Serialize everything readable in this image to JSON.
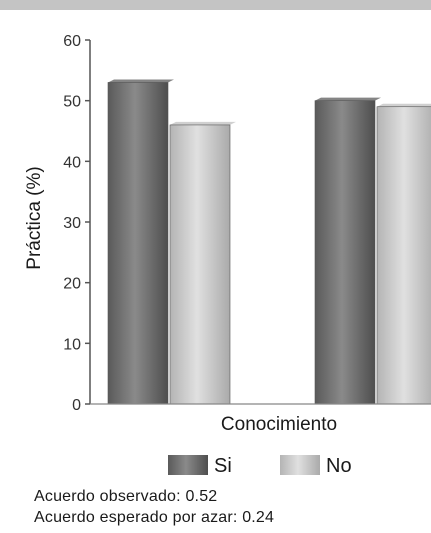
{
  "chart_data": {
    "type": "bar",
    "xlabel": "Conocimiento",
    "ylabel": "Práctica (%)",
    "ylim": [
      0,
      60
    ],
    "yticks": [
      0,
      10,
      20,
      30,
      40,
      50,
      60
    ],
    "categories": [
      "",
      ""
    ],
    "series": [
      {
        "name": "Si",
        "values": [
          53,
          50
        ],
        "color": "#6e6e6e"
      },
      {
        "name": "No",
        "values": [
          46,
          49
        ],
        "color": "#c8c8c8"
      }
    ],
    "grid": false,
    "legend": "bottom"
  },
  "notes": {
    "observed": "Acuerdo observado: 0.52",
    "expected": "Acuerdo esperado por azar: 0.24"
  },
  "colors": {
    "rule": "#c4c4c4",
    "axis": "#555555"
  }
}
